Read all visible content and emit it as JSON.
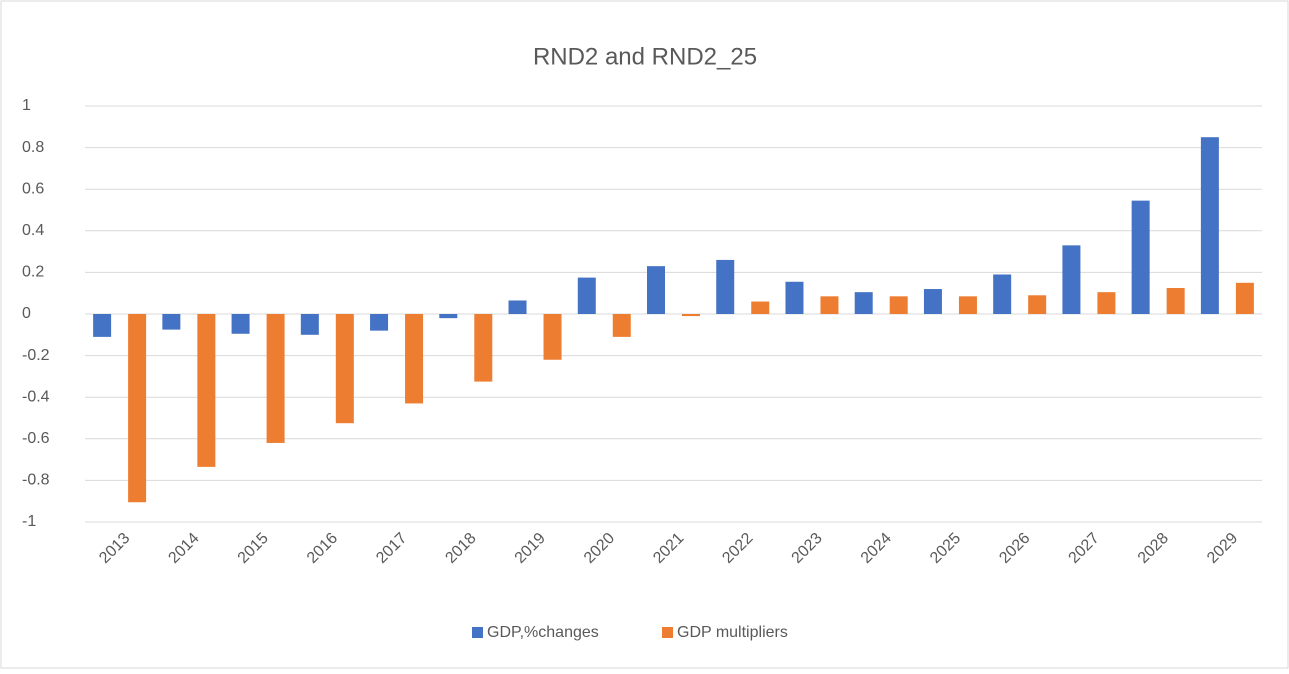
{
  "chart_data": {
    "type": "bar",
    "title": "RND2 and RND2_25",
    "categories": [
      "2013",
      "2014",
      "2015",
      "2016",
      "2017",
      "2018",
      "2019",
      "2020",
      "2021",
      "2022",
      "2023",
      "2024",
      "2025",
      "2026",
      "2027",
      "2028",
      "2029"
    ],
    "series": [
      {
        "name": "GDP,%changes",
        "color": "#4472c4",
        "values": [
          -0.11,
          -0.075,
          -0.095,
          -0.1,
          -0.08,
          -0.02,
          0.065,
          0.175,
          0.23,
          0.26,
          0.155,
          0.105,
          0.12,
          0.19,
          0.33,
          0.545,
          0.85
        ]
      },
      {
        "name": "GDP multipliers",
        "color": "#ed7d31",
        "values": [
          -0.905,
          -0.735,
          -0.62,
          -0.525,
          -0.43,
          -0.325,
          -0.22,
          -0.11,
          -0.01,
          0.06,
          0.085,
          0.085,
          0.085,
          0.09,
          0.105,
          0.125,
          0.15
        ]
      }
    ],
    "ylim": [
      -1,
      1
    ],
    "yticks": [
      -1,
      -0.8,
      -0.6,
      -0.4,
      -0.2,
      0,
      0.2,
      0.4,
      0.6,
      0.8,
      1
    ],
    "grid": true,
    "legend": "bottom"
  }
}
